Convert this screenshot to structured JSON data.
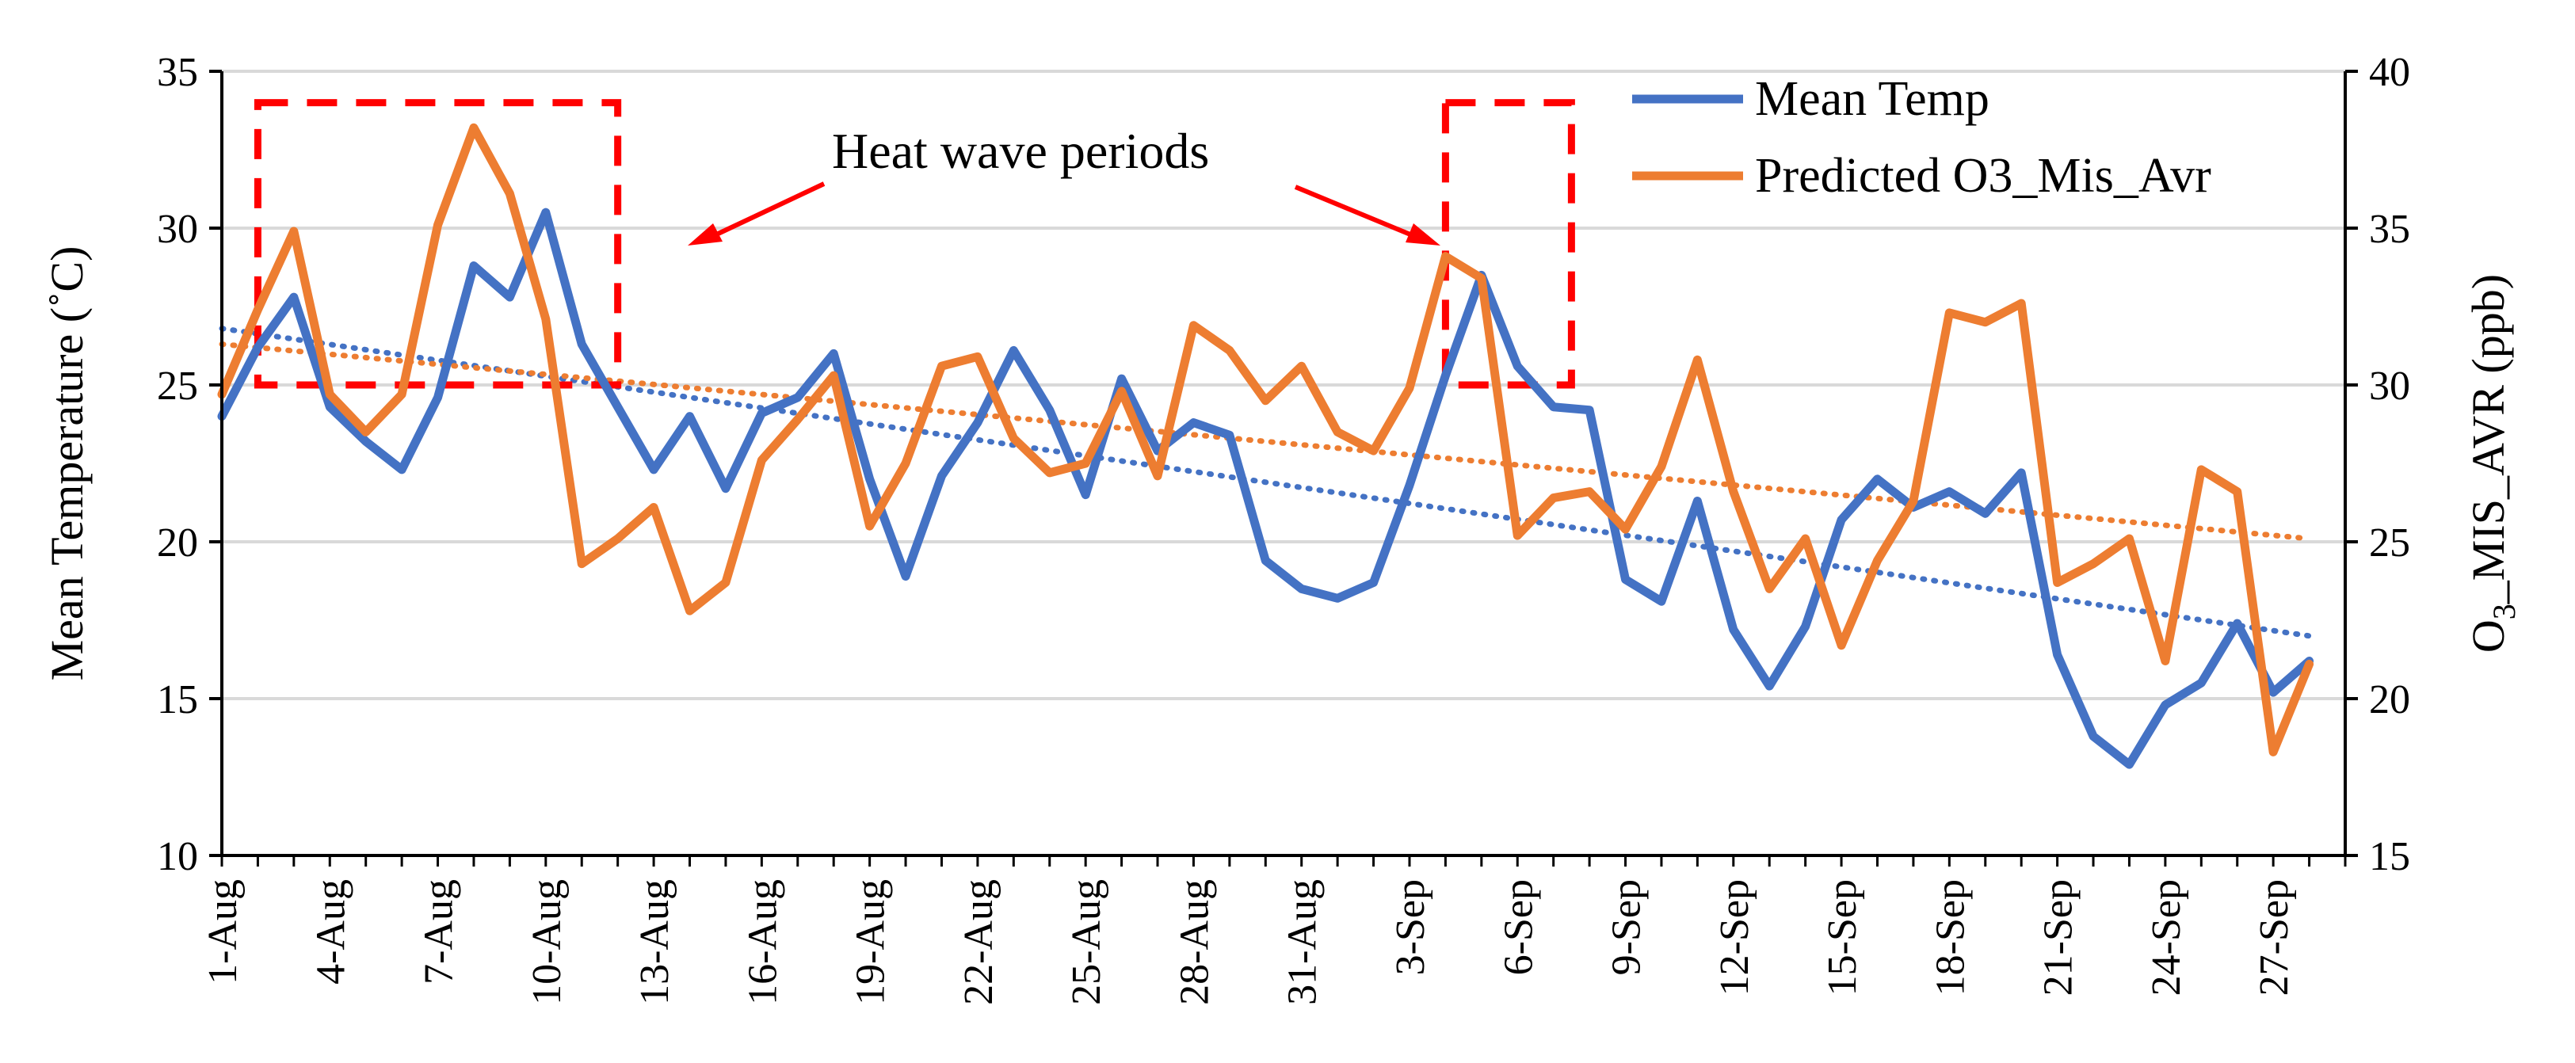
{
  "chart_data": {
    "type": "line",
    "title": "",
    "xlabel": "",
    "ylabel": "Mean Temperature (˚C)",
    "y2label": {
      "main": "O",
      "sub": "3",
      "rest": "_MIS_AVR (ppb)"
    },
    "ylim": [
      10,
      35
    ],
    "y2lim": [
      15,
      40
    ],
    "yticks": [
      10,
      15,
      20,
      25,
      30,
      35
    ],
    "y2ticks": [
      15,
      20,
      25,
      30,
      35,
      40
    ],
    "grid": "horizontal",
    "legend_position": "top-right",
    "x_tick_labels": [
      "1-Aug",
      "4-Aug",
      "7-Aug",
      "10-Aug",
      "13-Aug",
      "16-Aug",
      "19-Aug",
      "22-Aug",
      "25-Aug",
      "28-Aug",
      "31-Aug",
      "3-Sep",
      "6-Sep",
      "9-Sep",
      "12-Sep",
      "15-Sep",
      "18-Sep",
      "21-Sep",
      "24-Sep",
      "27-Sep"
    ],
    "x_tick_step_days": 3,
    "num_days": 59,
    "series": [
      {
        "name": "Mean Temp",
        "axis": "left",
        "color": "#4472C4",
        "values": [
          24.0,
          26.2,
          27.8,
          24.3,
          23.2,
          22.3,
          24.6,
          28.8,
          27.8,
          30.5,
          26.3,
          24.3,
          22.3,
          24.0,
          21.7,
          24.1,
          24.6,
          26.0,
          22.0,
          18.9,
          22.1,
          23.8,
          26.1,
          24.2,
          21.5,
          25.2,
          22.9,
          23.8,
          23.4,
          19.4,
          18.5,
          18.2,
          18.7,
          21.8,
          25.3,
          28.5,
          25.6,
          24.3,
          24.2,
          18.8,
          18.1,
          21.3,
          17.2,
          15.4,
          17.3,
          20.7,
          22.0,
          21.1,
          21.6,
          20.9,
          22.2,
          16.4,
          13.8,
          12.9,
          14.8,
          15.5,
          17.4,
          15.2,
          16.2
        ]
      },
      {
        "name": "Predicted O3_Mis_Avr",
        "axis": "right",
        "color": "#ED7D31",
        "values": [
          29.7,
          32.4,
          34.9,
          29.7,
          28.5,
          29.7,
          35.1,
          38.2,
          36.1,
          32.1,
          24.3,
          25.1,
          26.1,
          22.8,
          23.7,
          27.6,
          28.9,
          30.3,
          25.5,
          27.5,
          30.6,
          30.9,
          28.3,
          27.2,
          27.5,
          29.8,
          27.1,
          31.9,
          31.1,
          29.5,
          30.6,
          28.5,
          27.9,
          29.9,
          34.1,
          33.4,
          25.2,
          26.4,
          26.6,
          25.4,
          27.4,
          30.8,
          26.6,
          23.5,
          25.1,
          21.7,
          24.4,
          26.3,
          32.3,
          32.0,
          32.6,
          23.7,
          24.3,
          25.1,
          21.2,
          27.3,
          26.6,
          18.3,
          21.1
        ]
      },
      {
        "name": "Mean Temp trend",
        "axis": "left",
        "style": "dotted",
        "color": "#4472C4",
        "start": 26.8,
        "end": 17.0
      },
      {
        "name": "Predicted O3_Mis_Avr trend",
        "axis": "right",
        "style": "dotted",
        "color": "#ED7D31",
        "start": 31.3,
        "end": 25.1
      }
    ],
    "annotations": {
      "text": "Heat wave periods",
      "boxes": [
        {
          "from_day": 2,
          "to_day": 12,
          "ymin": 25,
          "ymax": 34
        },
        {
          "from_day": 35,
          "to_day": 38.5,
          "ymin": 25,
          "ymax": 34
        }
      ],
      "box_color": "#FF0000"
    }
  }
}
